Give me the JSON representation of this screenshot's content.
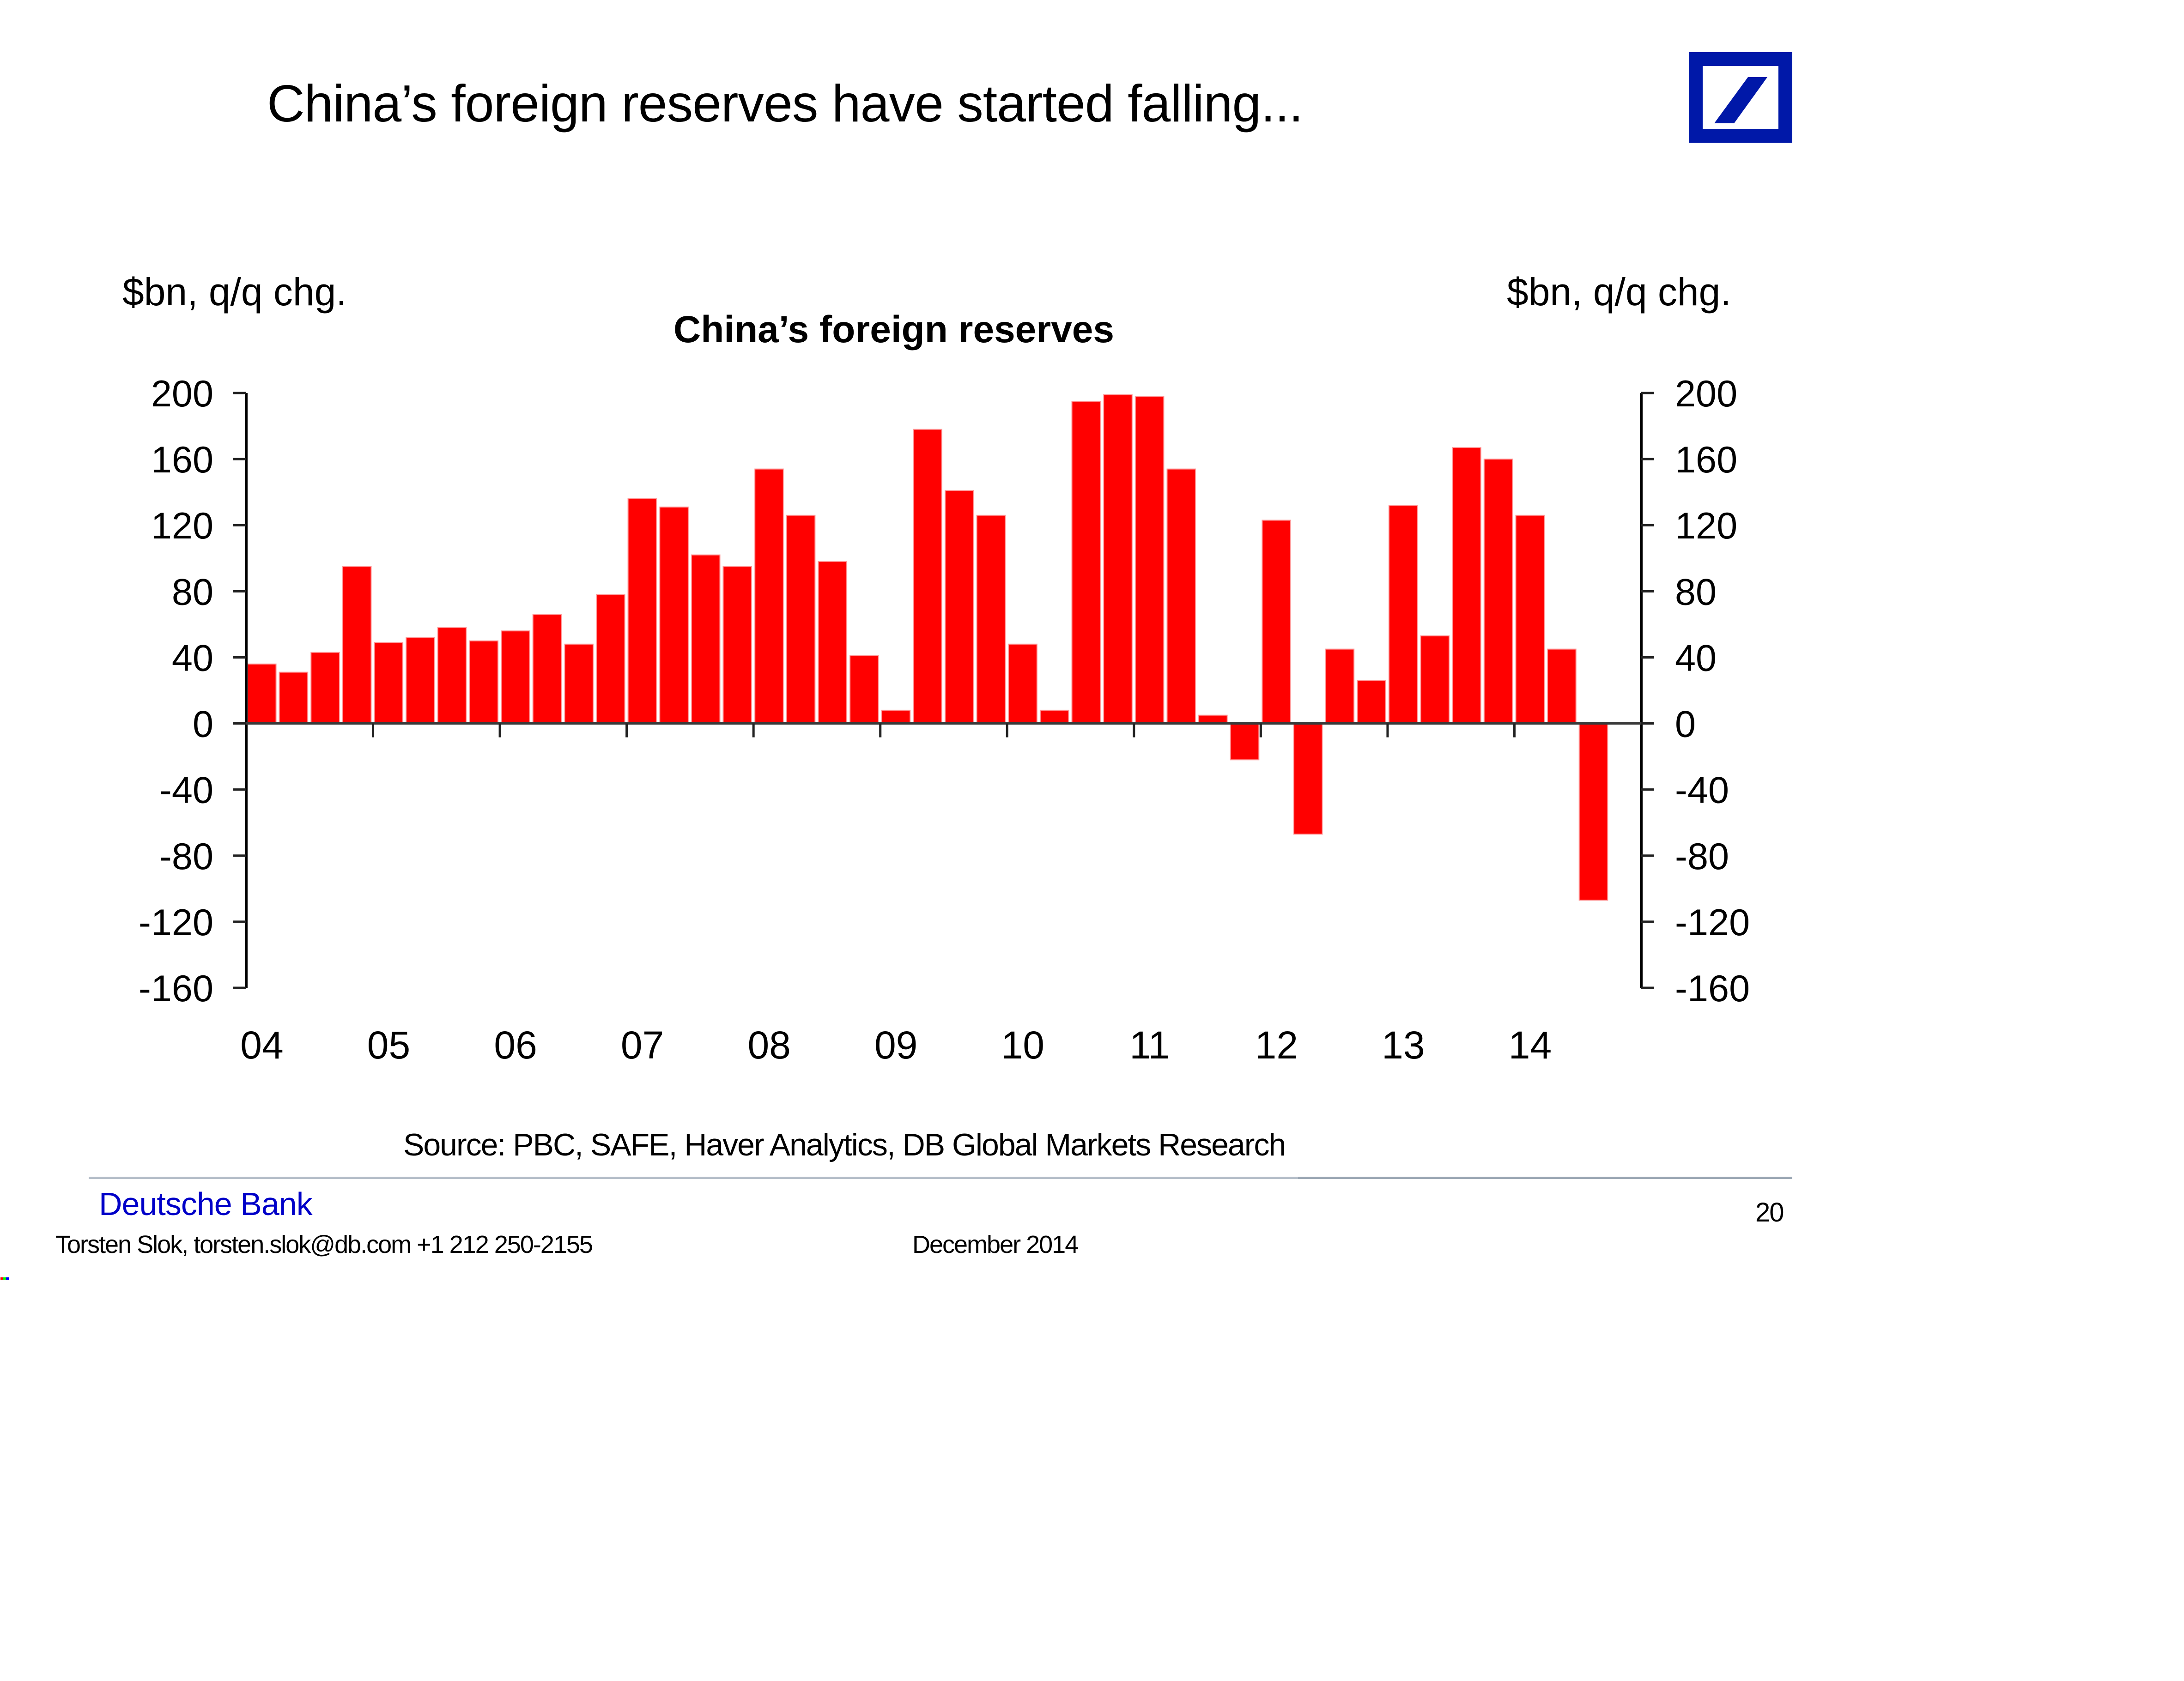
{
  "slide": {
    "title": "China’s foreign reserves have started falling...",
    "logo": "Deutsche Bank slash logo",
    "source": "Source: PBC, SAFE, Haver Analytics, DB Global Markets Research",
    "footer": {
      "bank_name": "Deutsche Bank",
      "contact": "Torsten Slok, torsten.slok@db.com +1 212 250-2155",
      "date": "December  2014",
      "page_number": "20"
    },
    "colors": {
      "bar": "#FF0000",
      "brand_blue": "#0018A8",
      "footer_text_blue": "#0000C8"
    }
  },
  "chart_data": {
    "type": "bar",
    "title": "China’s foreign reserves",
    "ylabel_left": "$bn, q/q chg.",
    "ylabel_right": "$bn, q/q chg.",
    "xlabel": "",
    "ylim": [
      -160,
      200
    ],
    "yticks": [
      200,
      160,
      120,
      80,
      40,
      0,
      -40,
      -80,
      -120,
      -160
    ],
    "xtick_labels": [
      "04",
      "05",
      "06",
      "07",
      "08",
      "09",
      "10",
      "11",
      "12",
      "13",
      "14"
    ],
    "x_range": [
      "2004Q1",
      "2014Q4"
    ],
    "grid": false,
    "legend": "none",
    "categories": [
      "2004Q1",
      "2004Q2",
      "2004Q3",
      "2004Q4",
      "2005Q1",
      "2005Q2",
      "2005Q3",
      "2005Q4",
      "2006Q1",
      "2006Q2",
      "2006Q3",
      "2006Q4",
      "2007Q1",
      "2007Q2",
      "2007Q3",
      "2007Q4",
      "2008Q1",
      "2008Q2",
      "2008Q3",
      "2008Q4",
      "2009Q1",
      "2009Q2",
      "2009Q3",
      "2009Q4",
      "2010Q1",
      "2010Q2",
      "2010Q3",
      "2010Q4",
      "2011Q1",
      "2011Q2",
      "2011Q3",
      "2011Q4",
      "2012Q1",
      "2012Q2",
      "2012Q3",
      "2012Q4",
      "2013Q1",
      "2013Q2",
      "2013Q3",
      "2013Q4",
      "2014Q1",
      "2014Q2",
      "2014Q3"
    ],
    "series": [
      {
        "name": "China's foreign reserves, q/q change ($bn)",
        "values": [
          36,
          31,
          43,
          95,
          49,
          52,
          58,
          50,
          56,
          66,
          48,
          78,
          136,
          131,
          102,
          95,
          154,
          126,
          98,
          41,
          8,
          178,
          141,
          126,
          48,
          8,
          195,
          199,
          198,
          154,
          5,
          -22,
          123,
          -67,
          45,
          26,
          132,
          53,
          167,
          160,
          126,
          45,
          -107
        ]
      }
    ]
  }
}
